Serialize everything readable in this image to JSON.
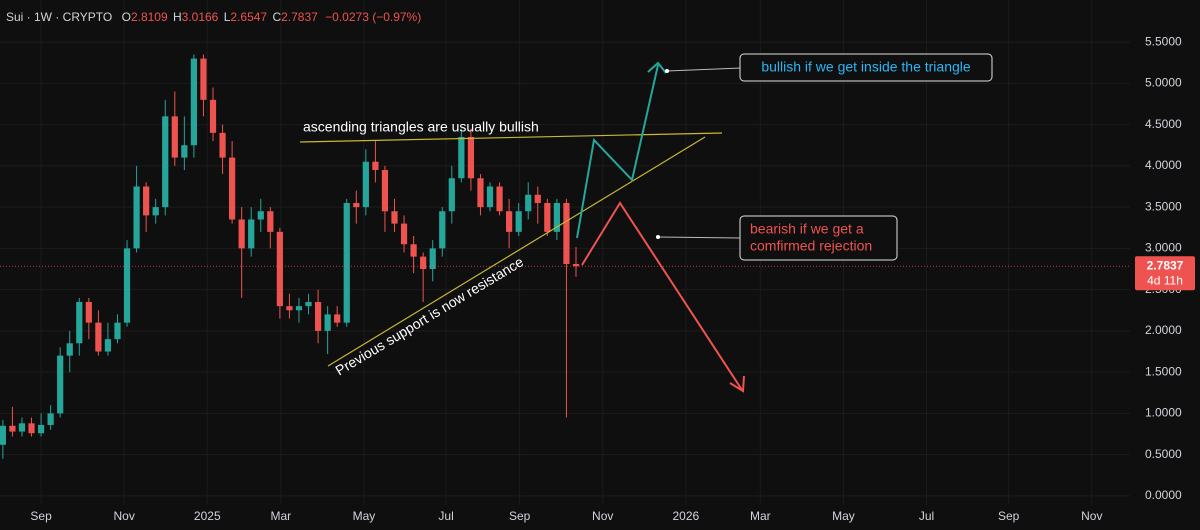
{
  "chart_data": {
    "type": "candlestick",
    "symbol": "Sui · 1W · CRYPTO",
    "ohlc_labels": [
      "O",
      "H",
      "L",
      "C"
    ],
    "change_label": "−0.0273 (−0.97%)",
    "countdown": "4d 11h",
    "up_color": "#26a69a",
    "down_color": "#ef5350",
    "x": [
      0,
      1,
      2,
      3,
      4,
      5,
      6,
      7,
      8,
      9,
      10,
      11,
      12,
      13,
      14,
      15,
      16,
      17,
      18,
      19,
      20,
      21,
      22,
      23,
      24,
      25,
      26,
      27,
      28,
      29,
      30,
      31,
      32,
      33,
      34,
      35,
      36,
      37,
      38,
      39,
      40,
      41,
      42,
      43,
      44,
      45,
      46,
      47,
      48,
      49,
      50,
      51,
      52,
      53,
      54,
      55,
      56,
      57,
      58,
      59,
      60
    ],
    "open": [
      0.62,
      0.85,
      0.78,
      0.88,
      0.76,
      0.86,
      1.0,
      1.7,
      1.85,
      2.35,
      2.1,
      1.75,
      1.9,
      2.1,
      3.0,
      3.75,
      3.4,
      3.5,
      4.6,
      4.1,
      4.25,
      5.3,
      4.8,
      4.4,
      4.1,
      3.35,
      3.0,
      3.35,
      3.45,
      3.2,
      2.3,
      2.25,
      2.3,
      2.35,
      2.0,
      2.2,
      2.1,
      3.55,
      3.5,
      4.05,
      3.95,
      3.45,
      3.3,
      3.05,
      2.9,
      2.75,
      3.0,
      3.45,
      3.85,
      4.35,
      3.85,
      3.5,
      3.75,
      3.45,
      3.2,
      3.45,
      3.65,
      3.55,
      3.2,
      3.55,
      2.8109
    ],
    "high": [
      0.92,
      1.08,
      0.95,
      0.95,
      1.0,
      1.1,
      1.8,
      2.0,
      2.4,
      2.4,
      2.25,
      2.1,
      2.2,
      3.1,
      4.0,
      3.8,
      3.6,
      4.8,
      4.9,
      4.6,
      5.35,
      5.35,
      4.95,
      4.5,
      4.3,
      3.5,
      3.5,
      3.6,
      3.5,
      3.25,
      2.45,
      2.4,
      2.45,
      2.5,
      2.3,
      2.3,
      3.6,
      3.7,
      4.2,
      4.3,
      4.0,
      3.6,
      3.4,
      3.15,
      2.95,
      3.1,
      3.5,
      4.0,
      4.45,
      4.45,
      3.9,
      3.8,
      3.8,
      3.6,
      3.55,
      3.8,
      3.75,
      3.6,
      3.6,
      3.6,
      3.0166
    ],
    "low": [
      0.45,
      0.72,
      0.72,
      0.72,
      0.72,
      0.8,
      0.95,
      1.5,
      1.7,
      1.9,
      1.7,
      1.7,
      1.85,
      2.05,
      2.95,
      3.2,
      3.3,
      3.4,
      4.0,
      3.95,
      4.1,
      4.6,
      4.3,
      3.9,
      3.3,
      2.4,
      2.9,
      3.2,
      3.0,
      2.15,
      2.15,
      2.1,
      2.2,
      1.85,
      1.72,
      2.05,
      2.05,
      3.3,
      3.4,
      3.8,
      3.2,
      3.2,
      2.95,
      2.7,
      2.35,
      2.6,
      2.9,
      3.3,
      3.8,
      3.7,
      3.4,
      3.45,
      3.4,
      3.0,
      3.15,
      3.35,
      3.3,
      3.15,
      3.1,
      0.95,
      2.6547
    ],
    "close": [
      0.85,
      0.78,
      0.88,
      0.76,
      0.86,
      1.0,
      1.7,
      1.85,
      2.35,
      2.1,
      1.75,
      1.9,
      2.1,
      3.0,
      3.75,
      3.4,
      3.5,
      4.6,
      4.1,
      4.25,
      5.3,
      4.8,
      4.4,
      4.1,
      3.35,
      3.0,
      3.35,
      3.45,
      3.2,
      2.3,
      2.25,
      2.3,
      2.35,
      2.0,
      2.2,
      2.1,
      3.55,
      3.5,
      4.05,
      3.95,
      3.45,
      3.3,
      3.05,
      2.9,
      2.75,
      3.0,
      3.45,
      3.85,
      4.35,
      3.85,
      3.5,
      3.75,
      3.45,
      3.2,
      3.45,
      3.65,
      3.55,
      3.2,
      3.55,
      2.81,
      2.7837
    ],
    "xlim": [
      -0.3,
      118
    ],
    "xticks": [
      {
        "value": 4,
        "label": "Sep"
      },
      {
        "value": 12.7,
        "label": "Nov"
      },
      {
        "value": 21.4,
        "label": "2025"
      },
      {
        "value": 29.1,
        "label": "Mar"
      },
      {
        "value": 37.8,
        "label": "May"
      },
      {
        "value": 46.4,
        "label": "Jul"
      },
      {
        "value": 54.1,
        "label": "Sep"
      },
      {
        "value": 62.8,
        "label": "Nov"
      },
      {
        "value": 71.5,
        "label": "2026"
      },
      {
        "value": 79.3,
        "label": "Mar"
      },
      {
        "value": 88,
        "label": "May"
      },
      {
        "value": 96.7,
        "label": "Jul"
      },
      {
        "value": 105.3,
        "label": "Sep"
      },
      {
        "value": 114,
        "label": "Nov"
      }
    ],
    "ylim": [
      -0.11,
      6.01
    ],
    "yticks": [
      {
        "value": 0,
        "label": "0.0000"
      },
      {
        "value": 0.5,
        "label": "0.5000"
      },
      {
        "value": 1,
        "label": "1.0000"
      },
      {
        "value": 1.5,
        "label": "1.5000"
      },
      {
        "value": 2,
        "label": "2.0000"
      },
      {
        "value": 2.5,
        "label": "2.5000"
      },
      {
        "value": 3,
        "label": "3.0000"
      },
      {
        "value": 3.5,
        "label": "3.5000"
      },
      {
        "value": 4,
        "label": "4.0000"
      },
      {
        "value": 4.5,
        "label": "4.5000"
      },
      {
        "value": 5,
        "label": "5.0000"
      },
      {
        "value": 5.5,
        "label": "5.5000"
      }
    ],
    "grid": true,
    "annotations": {
      "triangle": "ascending triangles are usually bullish",
      "support": "Previous support is now resistance",
      "bullish": "bullish if we get inside the triangle",
      "bearish": [
        "bearish if we get a",
        "comfirmed rejection"
      ]
    }
  }
}
